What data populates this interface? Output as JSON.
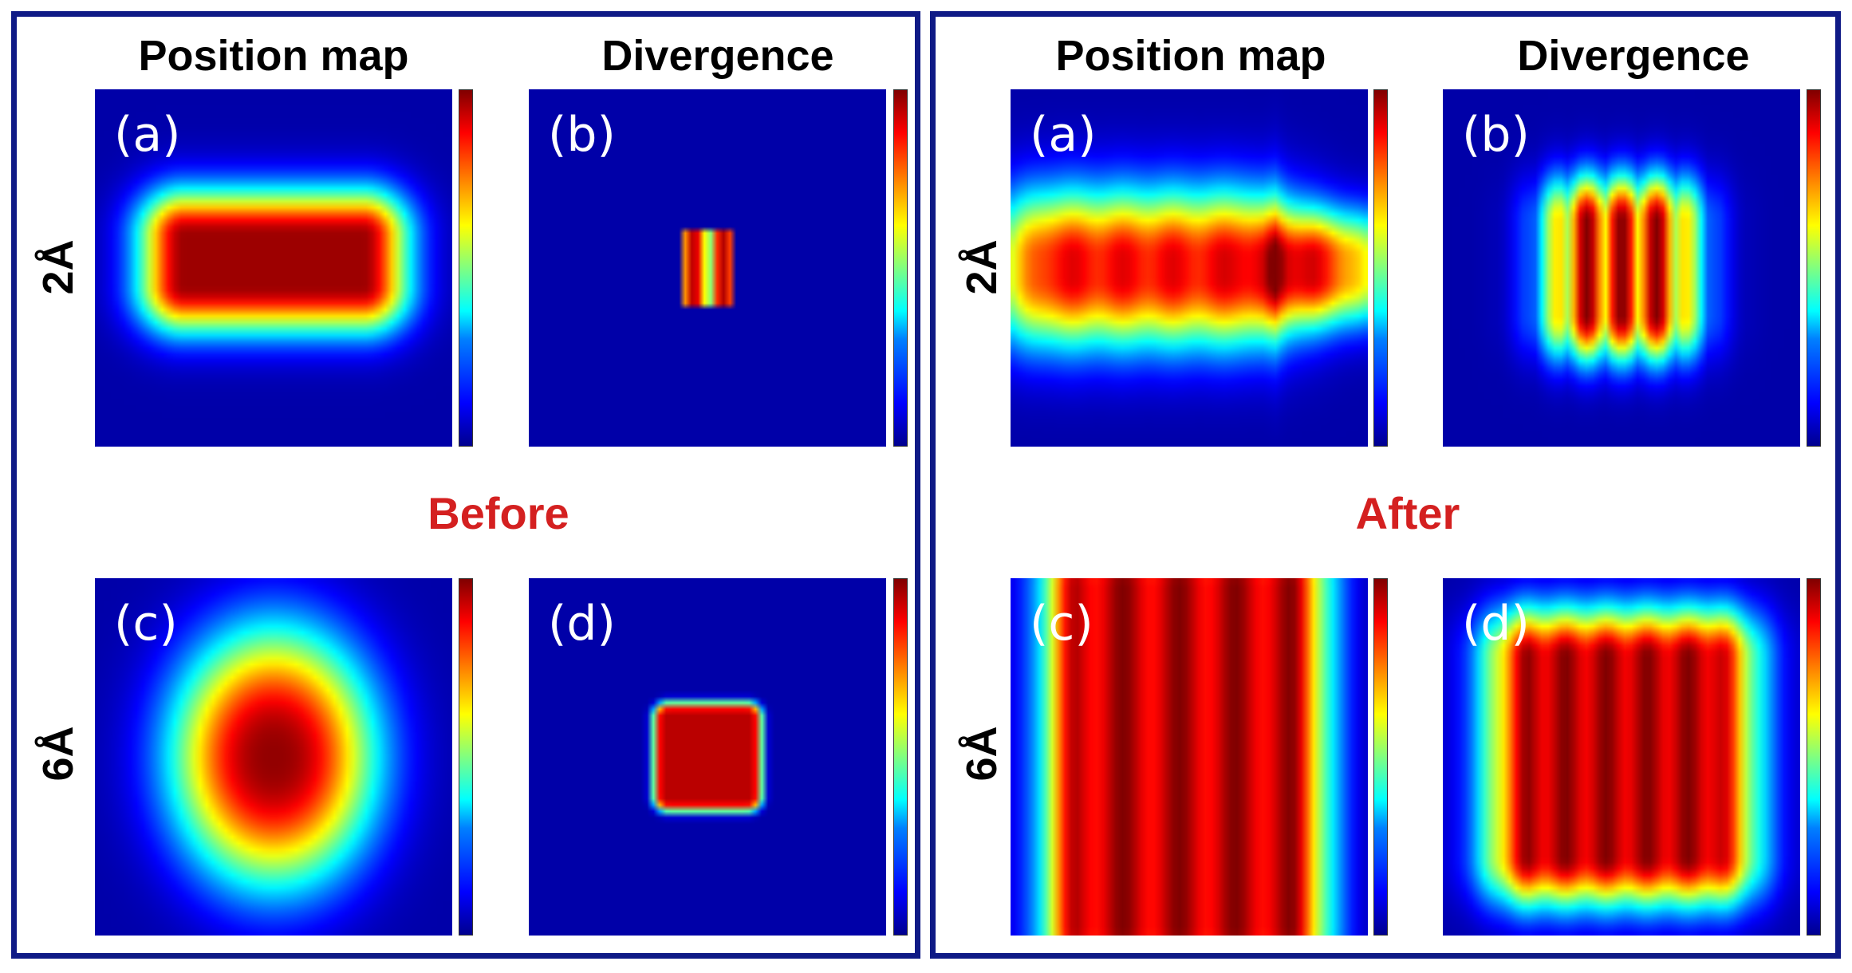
{
  "columns": {
    "position": "Position map",
    "divergence": "Divergence"
  },
  "rows": {
    "top": "2Å",
    "bottom": "6Å"
  },
  "states": {
    "before": "Before",
    "after": "After"
  },
  "panel_labels": {
    "a": "(a)",
    "b": "(b)",
    "c": "(c)",
    "d": "(d)"
  },
  "colors": {
    "frame": "#0f1a86",
    "state_label": "#d42020",
    "colormap": "jet"
  }
}
